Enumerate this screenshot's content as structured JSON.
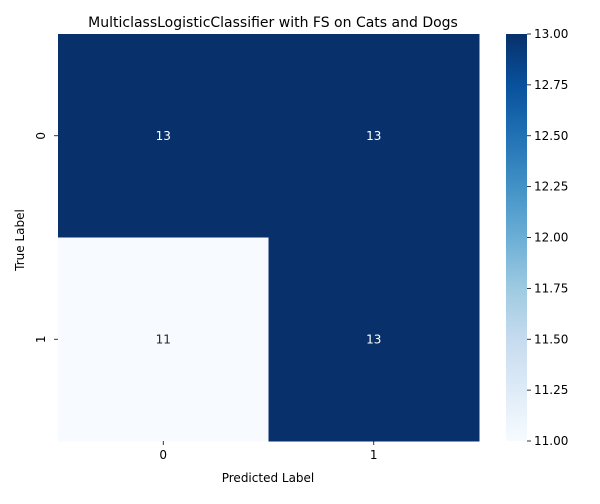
{
  "chart_data": {
    "type": "heatmap",
    "title": "MulticlassLogisticClassifier with FS on Cats and Dogs",
    "xlabel": "Predicted Label",
    "ylabel": "True Label",
    "x_categories": [
      "0",
      "1"
    ],
    "y_categories": [
      "0",
      "1"
    ],
    "values": [
      [
        13,
        13
      ],
      [
        11,
        13
      ]
    ],
    "colormap": "Blues",
    "color_low": "#f7fbff",
    "color_high": "#08306b",
    "colorbar": {
      "range": [
        11,
        13
      ],
      "ticks": [
        "11.00",
        "11.25",
        "11.50",
        "11.75",
        "12.00",
        "12.25",
        "12.50",
        "12.75",
        "13.00"
      ]
    }
  }
}
